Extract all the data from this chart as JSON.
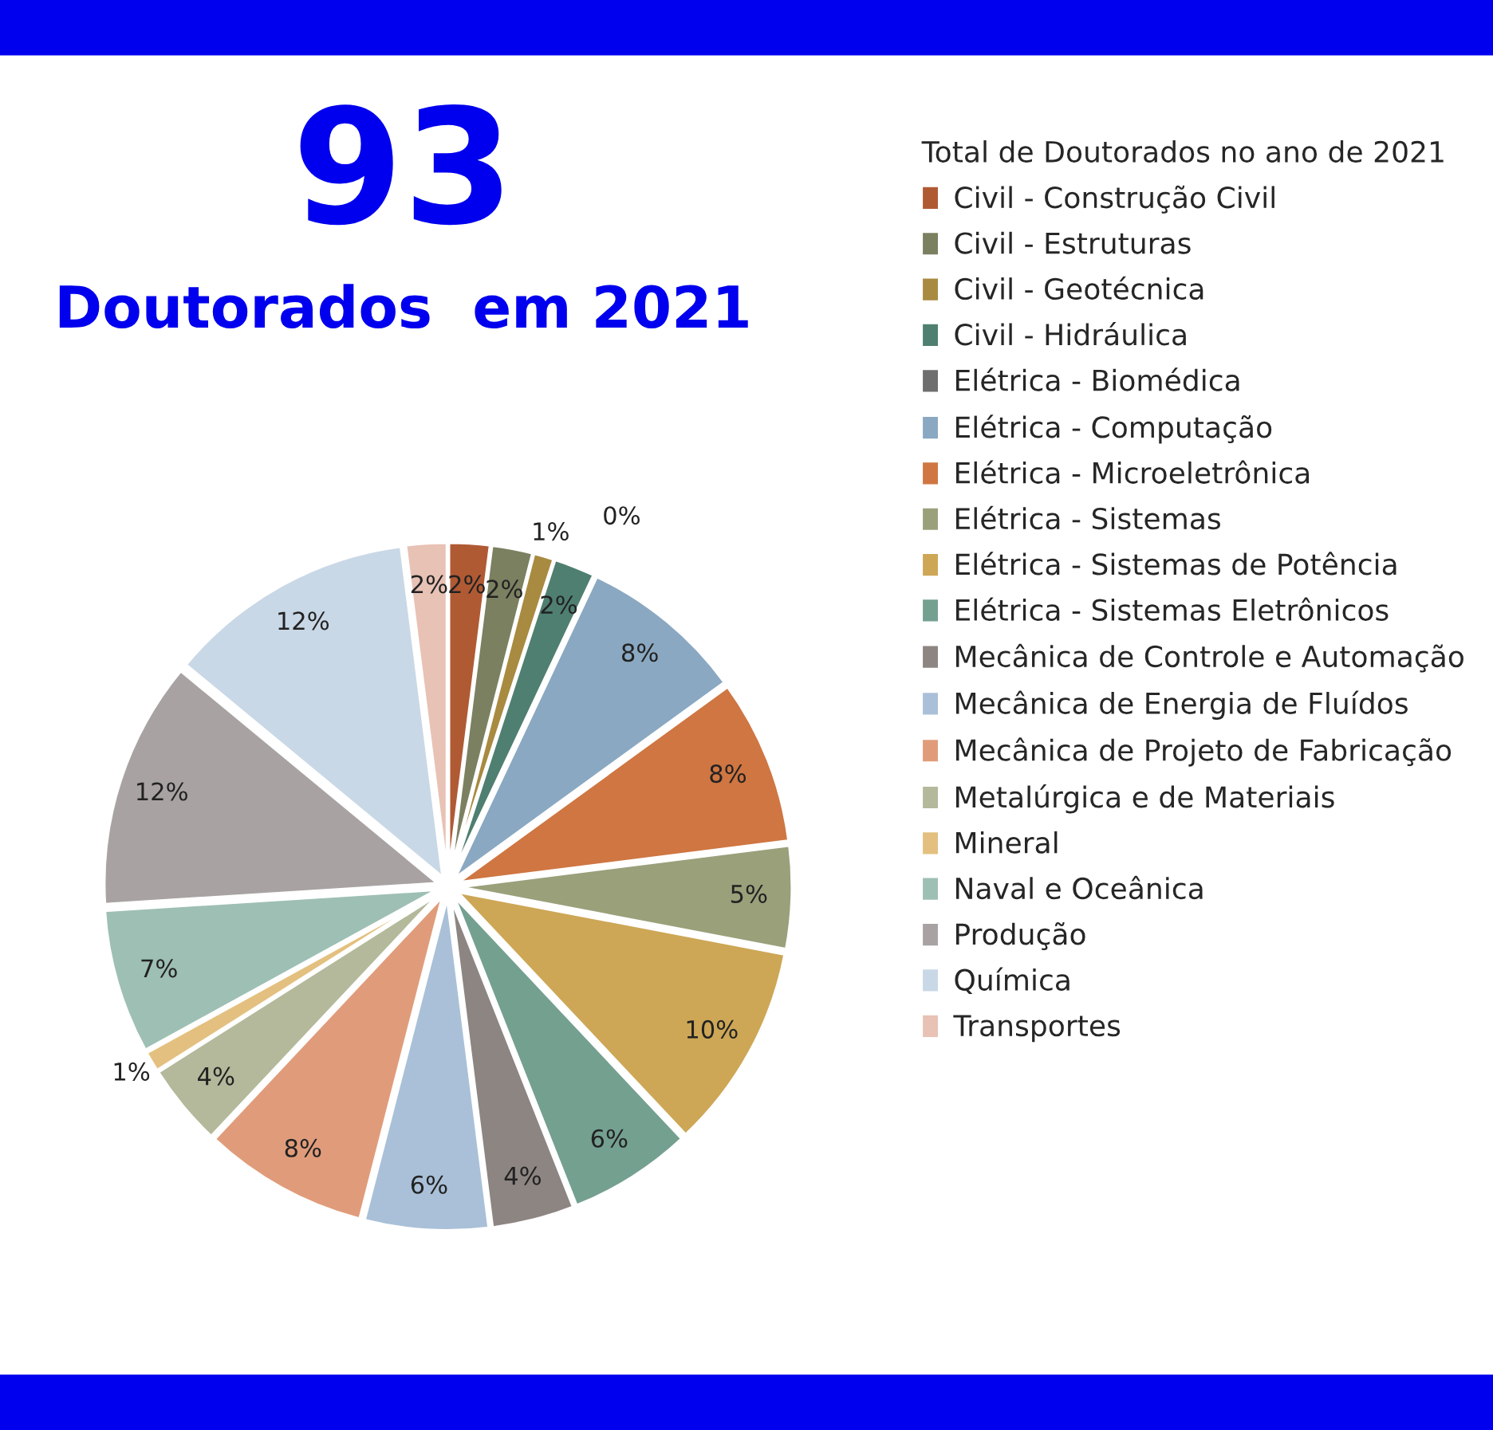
{
  "chart_data": {
    "type": "pie",
    "title": "93",
    "subtitle": "Doutorados  em 2021",
    "legend_title": "Total de Doutorados no ano de 2021",
    "legend": "right",
    "categories": [
      "Civil - Construção Civil",
      "Civil - Estruturas",
      "Civil - Geotécnica",
      "Civil - Hidráulica",
      "Elétrica - Biomédica",
      "Elétrica - Computação",
      "Elétrica - Microeletrônica",
      "Elétrica - Sistemas",
      "Elétrica - Sistemas de Potência",
      "Elétrica - Sistemas Eletrônicos",
      "Mecânica de Controle e Automação",
      "Mecânica de Energia de Fluídos",
      "Mecânica de Projeto de Fabricação",
      "Metalúrgica e de Materiais",
      "Mineral",
      "Naval e Oceânica",
      "Produção",
      "Química",
      "Transportes"
    ],
    "values": [
      2,
      2,
      1,
      2,
      0,
      8,
      8,
      5,
      10,
      6,
      4,
      6,
      8,
      4,
      1,
      7,
      12,
      12,
      2
    ],
    "value_labels": [
      "2%",
      "2%",
      "1%",
      "2%",
      "0%",
      "8%",
      "8%",
      "5%",
      "10%",
      "6%",
      "4%",
      "6%",
      "8%",
      "4%",
      "1%",
      "7%",
      "12%",
      "12%",
      "2%"
    ],
    "colors": [
      "#b05a34",
      "#7b8060",
      "#a88a40",
      "#4f7f70",
      "#6e6e6e",
      "#8aa8c2",
      "#cf7642",
      "#9aa07a",
      "#cda756",
      "#74a090",
      "#8d8582",
      "#a9c0d8",
      "#e09c7a",
      "#b3b99a",
      "#e3c07f",
      "#9ebfb4",
      "#a8a3a2",
      "#c9d8e6",
      "#e8c2b5"
    ]
  }
}
